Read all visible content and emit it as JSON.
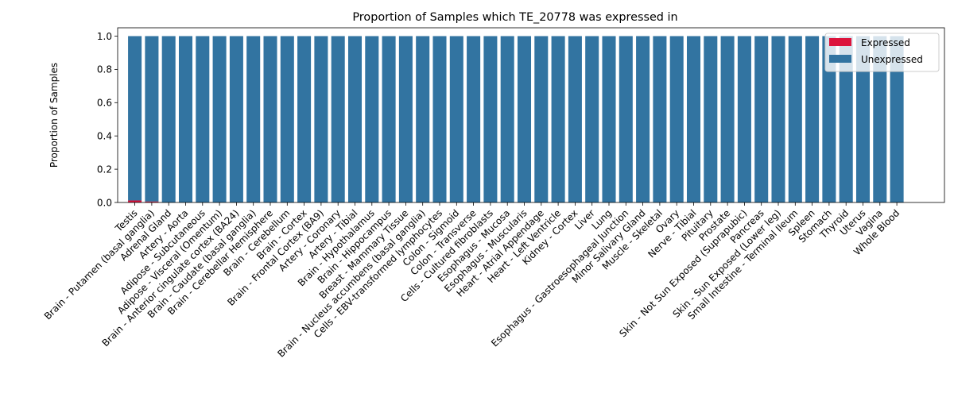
{
  "chart_data": {
    "type": "bar",
    "stacked": true,
    "title": "Proportion of Samples which TE_20778 was expressed in",
    "xlabel": "",
    "ylabel": "Proportion of Samples",
    "ylim": [
      0,
      1.05
    ],
    "yticks": [
      "0.0",
      "0.2",
      "0.4",
      "0.6",
      "0.8",
      "1.0"
    ],
    "grid": false,
    "legend_position": "top-right",
    "categories": [
      "Testis",
      "Brain - Putamen (basal ganglia)",
      "Adrenal Gland",
      "Artery - Aorta",
      "Adipose - Subcutaneous",
      "Adipose - Visceral (Omentum)",
      "Brain - Anterior cingulate cortex (BA24)",
      "Brain - Caudate (basal ganglia)",
      "Brain - Cerebellar Hemisphere",
      "Brain - Cerebellum",
      "Brain - Cortex",
      "Brain - Frontal Cortex (BA9)",
      "Artery - Coronary",
      "Artery - Tibial",
      "Brain - Hypothalamus",
      "Brain - Hippocampus",
      "Breast - Mammary Tissue",
      "Brain - Nucleus accumbens (basal ganglia)",
      "Cells - EBV-transformed lymphocytes",
      "Colon - Sigmoid",
      "Colon - Transverse",
      "Cells - Cultured fibroblasts",
      "Esophagus - Mucosa",
      "Esophagus - Muscularis",
      "Heart - Atrial Appendage",
      "Heart - Left Ventricle",
      "Kidney - Cortex",
      "Liver",
      "Lung",
      "Esophagus - Gastroesophageal Junction",
      "Minor Salivary Gland",
      "Muscle - Skeletal",
      "Ovary",
      "Nerve - Tibial",
      "Pituitary",
      "Prostate",
      "Skin - Not Sun Exposed (Suprapubic)",
      "Pancreas",
      "Skin - Sun Exposed (Lower leg)",
      "Small Intestine - Terminal Ileum",
      "Spleen",
      "Stomach",
      "Thyroid",
      "Uterus",
      "Vagina",
      "Whole Blood"
    ],
    "series": [
      {
        "name": "Expressed",
        "color": "#dc143c",
        "values": [
          0.012,
          0.006,
          0,
          0,
          0,
          0,
          0,
          0,
          0,
          0,
          0,
          0,
          0,
          0,
          0,
          0,
          0,
          0,
          0,
          0,
          0,
          0,
          0,
          0,
          0,
          0,
          0,
          0,
          0,
          0,
          0,
          0,
          0,
          0,
          0,
          0,
          0,
          0,
          0,
          0,
          0,
          0,
          0,
          0,
          0,
          0
        ]
      },
      {
        "name": "Unexpressed",
        "color": "#3274a1",
        "values": [
          0.988,
          0.994,
          1,
          1,
          1,
          1,
          1,
          1,
          1,
          1,
          1,
          1,
          1,
          1,
          1,
          1,
          1,
          1,
          1,
          1,
          1,
          1,
          1,
          1,
          1,
          1,
          1,
          1,
          1,
          1,
          1,
          1,
          1,
          1,
          1,
          1,
          1,
          1,
          1,
          1,
          1,
          1,
          1,
          1,
          1,
          1
        ]
      }
    ]
  }
}
